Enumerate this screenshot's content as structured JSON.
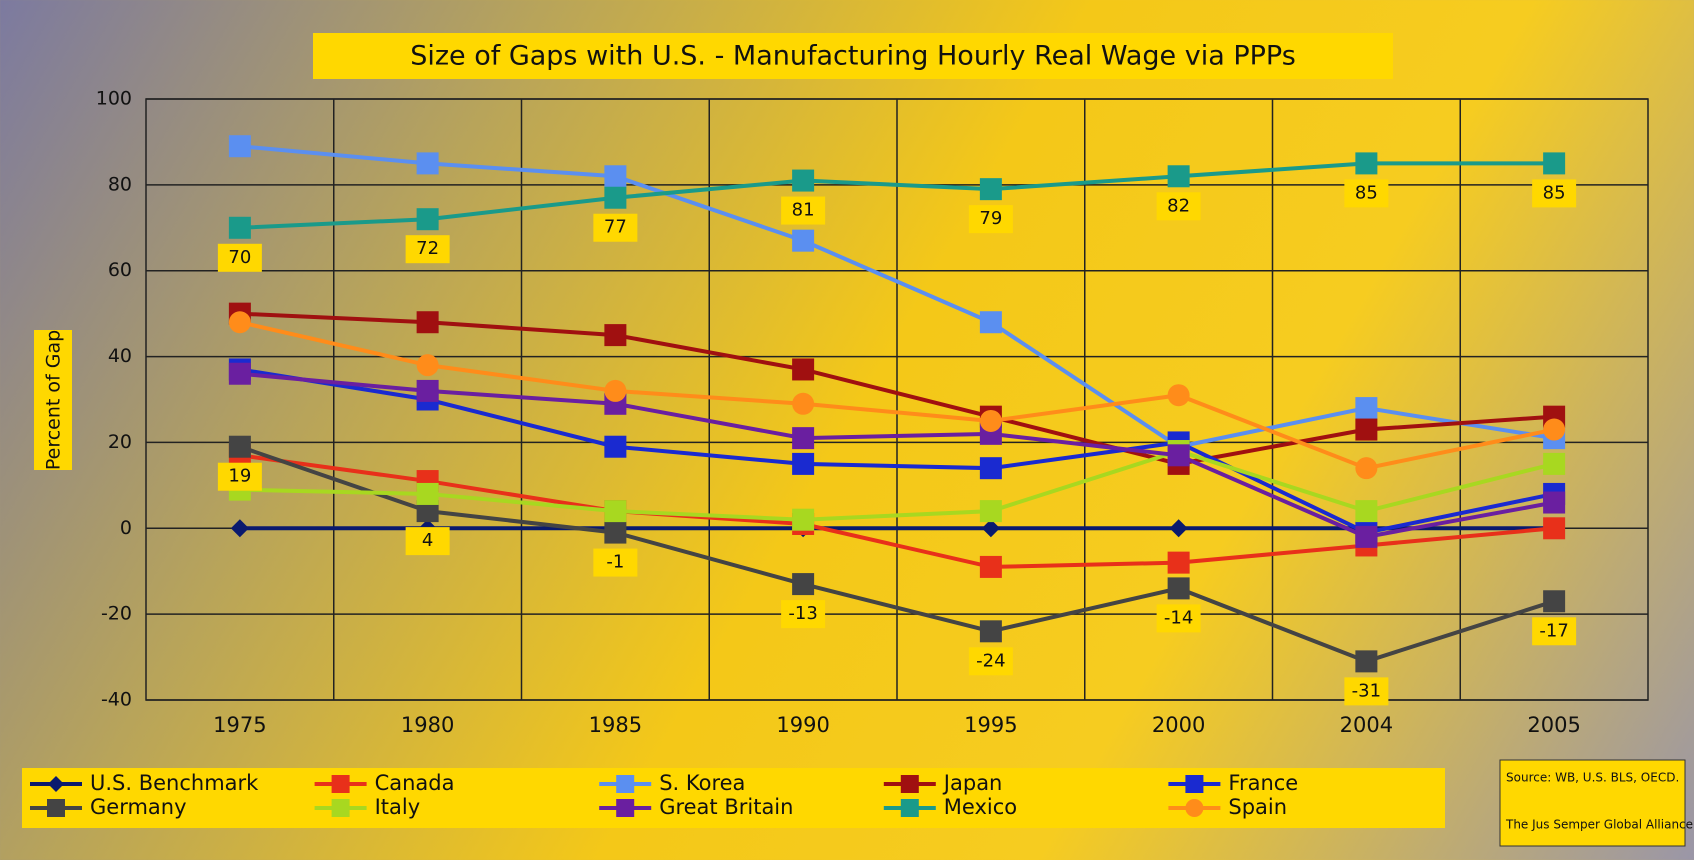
{
  "chart_data": {
    "type": "line",
    "title": "Size of Gaps with U.S. - Manufacturing Hourly Real Wage via PPPs",
    "y_label": "Percent of Gap",
    "source": [
      "Source: WB, U.S. BLS, OECD.",
      "The Jus Semper Global Alliance ©"
    ],
    "categories": [
      "1975",
      "1980",
      "1985",
      "1990",
      "1995",
      "2000",
      "2004",
      "2005"
    ],
    "ylim": [
      -40,
      100
    ],
    "yticks": [
      -40,
      -20,
      0,
      20,
      40,
      60,
      80,
      100
    ],
    "grid": true,
    "series": [
      {
        "name": "U.S. Benchmark",
        "color": "#0a1a6e",
        "marker": "diamond",
        "values": [
          0,
          0,
          0,
          0,
          0,
          0,
          0,
          0
        ]
      },
      {
        "name": "Canada",
        "color": "#e8301a",
        "marker": "square",
        "values": [
          17,
          11,
          4,
          1,
          -9,
          -8,
          -4,
          0
        ]
      },
      {
        "name": "S. Korea",
        "color": "#5b8ff0",
        "marker": "square",
        "values": [
          89,
          85,
          82,
          67,
          48,
          19,
          28,
          21
        ]
      },
      {
        "name": "Japan",
        "color": "#a01010",
        "marker": "square",
        "values": [
          50,
          48,
          45,
          37,
          26,
          15,
          23,
          26
        ]
      },
      {
        "name": "France",
        "color": "#1a2ad0",
        "marker": "square",
        "values": [
          37,
          30,
          19,
          15,
          14,
          20,
          -1,
          8
        ]
      },
      {
        "name": "Germany",
        "color": "#444444",
        "marker": "square",
        "values": [
          19,
          4,
          -1,
          -13,
          -24,
          -14,
          -31,
          -17
        ]
      },
      {
        "name": "Italy",
        "color": "#a8d820",
        "marker": "square",
        "values": [
          9,
          8,
          4,
          2,
          4,
          18,
          4,
          15
        ]
      },
      {
        "name": "Great Britain",
        "color": "#6a1fa0",
        "marker": "square",
        "values": [
          36,
          32,
          29,
          21,
          22,
          17,
          -2,
          6
        ]
      },
      {
        "name": "Mexico",
        "color": "#1a9a8a",
        "marker": "square",
        "values": [
          70,
          72,
          77,
          81,
          79,
          82,
          85,
          85
        ]
      },
      {
        "name": "Spain",
        "color": "#ff8c1a",
        "marker": "circle",
        "values": [
          48,
          38,
          32,
          29,
          25,
          31,
          14,
          23
        ]
      }
    ],
    "labeled_series": [
      5,
      8
    ]
  }
}
